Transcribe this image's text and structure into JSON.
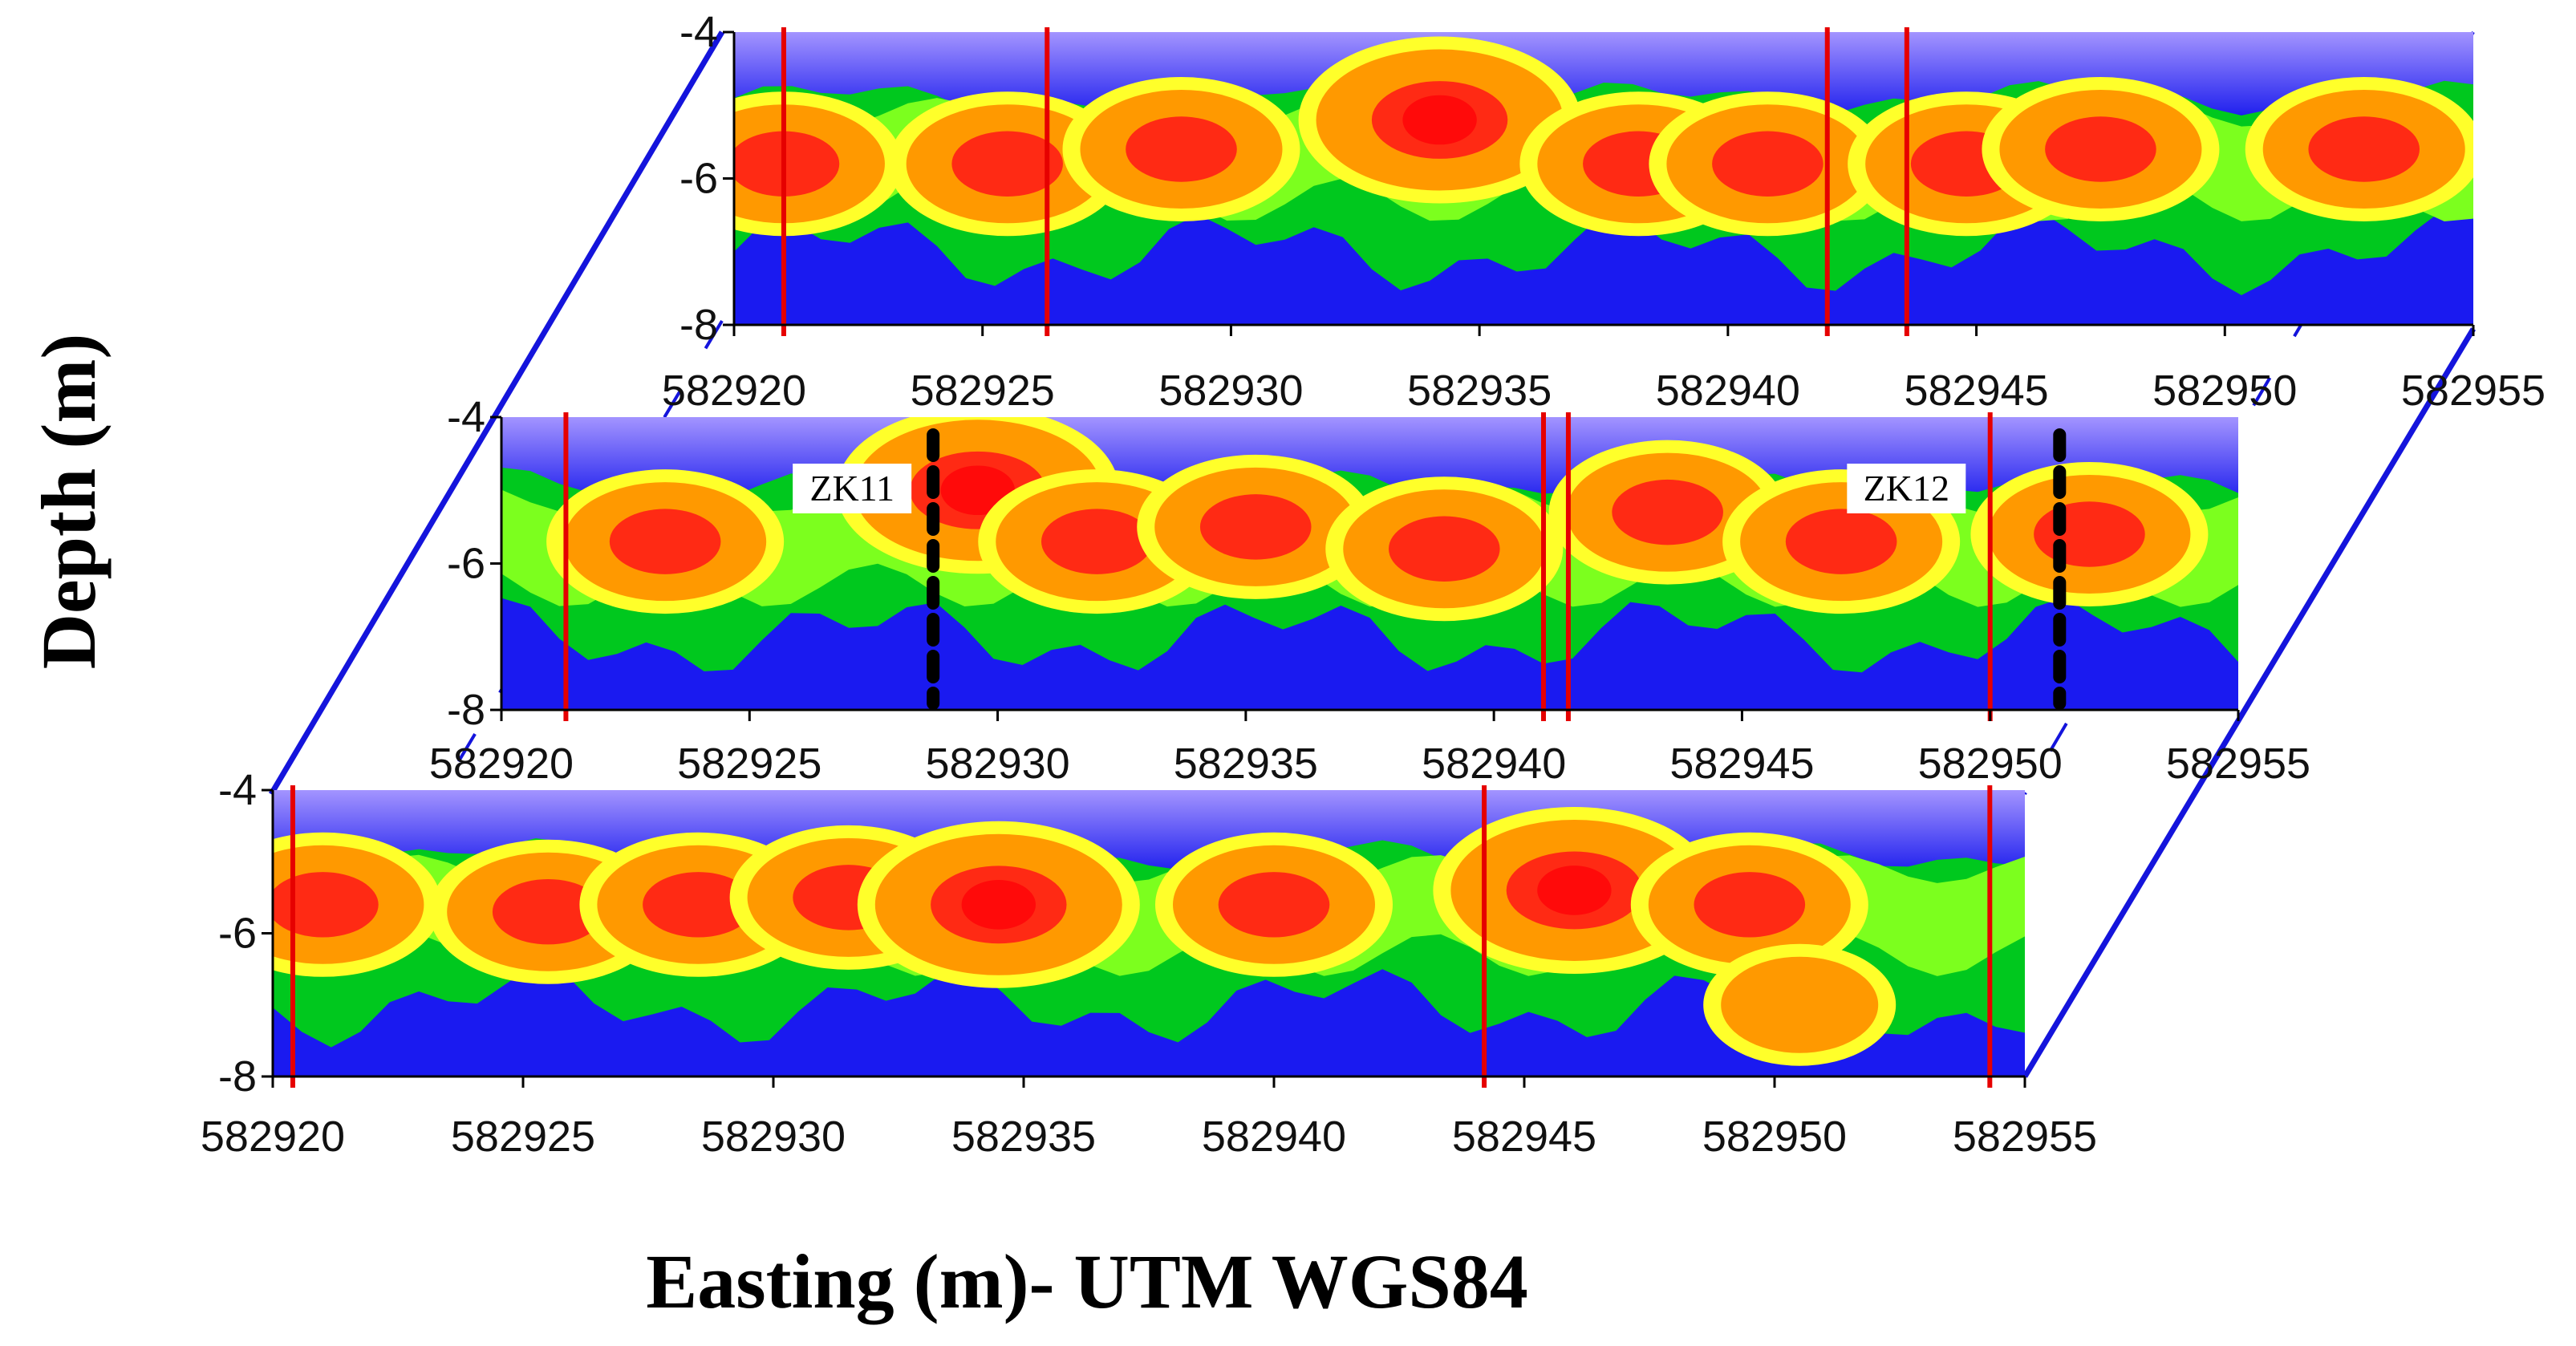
{
  "chart_data": {
    "type": "heatmap",
    "title": "",
    "xlabel": "Easting (m)- UTM WGS84",
    "ylabel": "Depth (m)",
    "xlim": [
      582920,
      582955
    ],
    "ylim": [
      -8,
      -4
    ],
    "x_ticks": [
      "582920",
      "582925",
      "582930",
      "582935",
      "582940",
      "582945",
      "582950",
      "582955"
    ],
    "y_ticks": [
      "-4",
      "-6",
      "-8"
    ],
    "colors": {
      "background_top": "#8a7cff",
      "low": "#1a1af0",
      "mid_low": "#00c81e",
      "mid": "#7cff1e",
      "mid_high": "#ffff2a",
      "high": "#ff9900",
      "very_high": "#ff2a14",
      "fault_line": "#e60000",
      "frame": "#1414dc",
      "borehole": "#000000"
    },
    "profiles": [
      {
        "name": "back",
        "faults_x": [
          582921,
          582926.3,
          582942,
          582943.6
        ],
        "anomalies": [
          {
            "x": 582921,
            "depth": -5.8,
            "value": 2
          },
          {
            "x": 582925.5,
            "depth": -5.8,
            "value": 2
          },
          {
            "x": 582929,
            "depth": -5.6,
            "value": 2
          },
          {
            "x": 582934.2,
            "depth": -5.2,
            "value": 3
          },
          {
            "x": 582938.2,
            "depth": -5.8,
            "value": 2
          },
          {
            "x": 582940.8,
            "depth": -5.8,
            "value": 2
          },
          {
            "x": 582944.8,
            "depth": -5.8,
            "value": 2
          },
          {
            "x": 582947.5,
            "depth": -5.6,
            "value": 2
          },
          {
            "x": 582952.8,
            "depth": -5.6,
            "value": 2
          }
        ]
      },
      {
        "name": "middle",
        "faults_x": [
          582921.3,
          582941,
          582941.5,
          582950
        ],
        "boreholes": [
          {
            "label": "ZK11",
            "x": 582928.7
          },
          {
            "label": "ZK12",
            "x": 582951.4
          }
        ],
        "anomalies": [
          {
            "x": 582923.3,
            "depth": -5.7,
            "value": 2
          },
          {
            "x": 582929.6,
            "depth": -5.0,
            "value": 3
          },
          {
            "x": 582932,
            "depth": -5.7,
            "value": 2
          },
          {
            "x": 582935.2,
            "depth": -5.5,
            "value": 2
          },
          {
            "x": 582939,
            "depth": -5.8,
            "value": 2
          },
          {
            "x": 582943.5,
            "depth": -5.3,
            "value": 2
          },
          {
            "x": 582947,
            "depth": -5.7,
            "value": 2
          },
          {
            "x": 582952,
            "depth": -5.6,
            "value": 2
          }
        ]
      },
      {
        "name": "front",
        "faults_x": [
          582920.4,
          582944.2,
          582954.3
        ],
        "anomalies": [
          {
            "x": 582921,
            "depth": -5.6,
            "value": 2
          },
          {
            "x": 582925.5,
            "depth": -5.7,
            "value": 2
          },
          {
            "x": 582928.5,
            "depth": -5.6,
            "value": 2
          },
          {
            "x": 582931.5,
            "depth": -5.5,
            "value": 2
          },
          {
            "x": 582934.5,
            "depth": -5.6,
            "value": 3
          },
          {
            "x": 582940,
            "depth": -5.6,
            "value": 2
          },
          {
            "x": 582946,
            "depth": -5.4,
            "value": 3
          },
          {
            "x": 582949.5,
            "depth": -5.6,
            "value": 2
          },
          {
            "x": 582950.5,
            "depth": -7.0,
            "value": 1
          }
        ]
      }
    ]
  }
}
